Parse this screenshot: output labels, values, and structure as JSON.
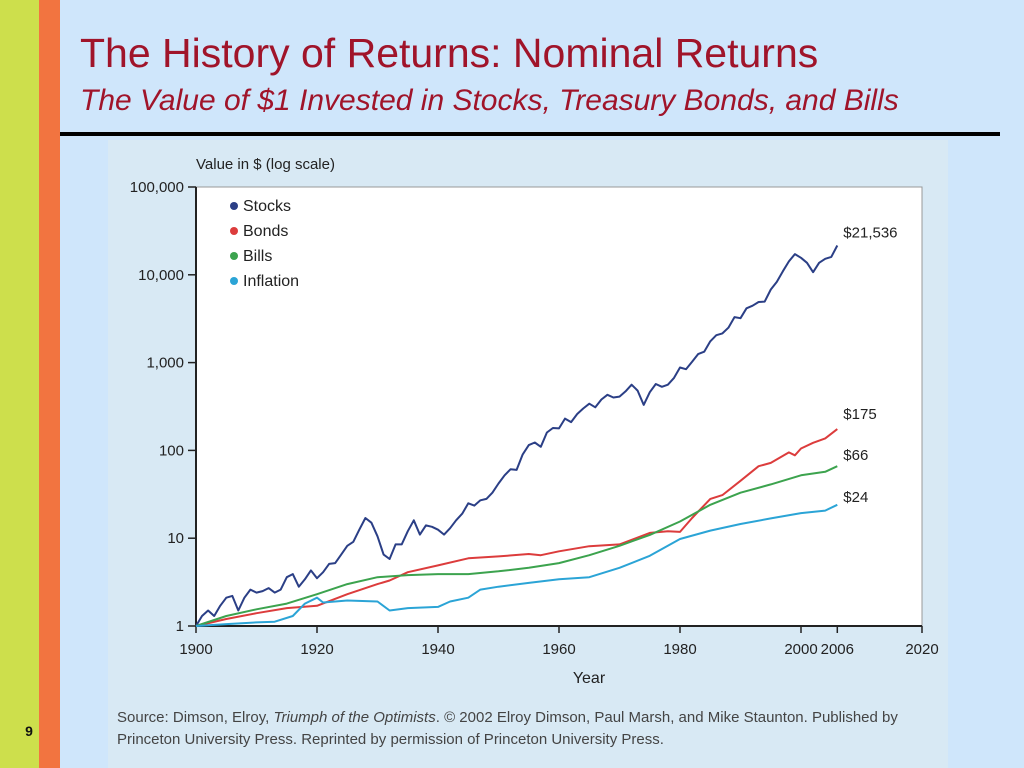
{
  "slide": {
    "number": "9",
    "title": "The History of Returns: Nominal Returns",
    "subtitle": "The Value of $1 Invested in Stocks, Treasury Bonds, and Bills"
  },
  "source": {
    "prefix": "Source: Dimson, Elroy, ",
    "book": "Triumph of the Optimists",
    "rest": ". © 2002 Elroy Dimson, Paul Marsh, and Mike Staunton. Published by Princeton University Press. Reprinted by permission of Princeton University Press."
  },
  "chart_data": {
    "type": "line",
    "ylabel": "Value in $ (log scale)",
    "xlabel": "Year",
    "yscale": "log",
    "ylim": [
      1,
      100000
    ],
    "xlim": [
      1900,
      2020
    ],
    "yticks": [
      {
        "value": 1,
        "label": "1"
      },
      {
        "value": 10,
        "label": "10"
      },
      {
        "value": 100,
        "label": "100"
      },
      {
        "value": 1000,
        "label": "1,000"
      },
      {
        "value": 10000,
        "label": "10,000"
      },
      {
        "value": 100000,
        "label": "100,000"
      }
    ],
    "xticks": [
      {
        "value": 1900,
        "label": "1900"
      },
      {
        "value": 1920,
        "label": "1920"
      },
      {
        "value": 1940,
        "label": "1940"
      },
      {
        "value": 1960,
        "label": "1960"
      },
      {
        "value": 1980,
        "label": "1980"
      },
      {
        "value": 2000,
        "label": "2000"
      },
      {
        "value": 2006,
        "label": "2006"
      },
      {
        "value": 2020,
        "label": "2020"
      }
    ],
    "grid": false,
    "legend": "top-left",
    "series": [
      {
        "name": "Stocks",
        "color": "#2b3f86",
        "end_label": "$21,536",
        "points": [
          [
            1900,
            1
          ],
          [
            1901,
            1.3
          ],
          [
            1902,
            1.5
          ],
          [
            1903,
            1.3
          ],
          [
            1904,
            1.7
          ],
          [
            1905,
            2.1
          ],
          [
            1906,
            2.2
          ],
          [
            1907,
            1.5
          ],
          [
            1908,
            2.1
          ],
          [
            1909,
            2.6
          ],
          [
            1910,
            2.4
          ],
          [
            1911,
            2.5
          ],
          [
            1912,
            2.7
          ],
          [
            1913,
            2.4
          ],
          [
            1914,
            2.6
          ],
          [
            1915,
            3.6
          ],
          [
            1916,
            3.9
          ],
          [
            1917,
            2.8
          ],
          [
            1918,
            3.4
          ],
          [
            1919,
            4.3
          ],
          [
            1920,
            3.5
          ],
          [
            1921,
            4.1
          ],
          [
            1922,
            5.1
          ],
          [
            1923,
            5.2
          ],
          [
            1924,
            6.5
          ],
          [
            1925,
            8.2
          ],
          [
            1926,
            9.1
          ],
          [
            1927,
            12.5
          ],
          [
            1928,
            17
          ],
          [
            1929,
            15
          ],
          [
            1930,
            10.5
          ],
          [
            1931,
            6.5
          ],
          [
            1932,
            5.8
          ],
          [
            1933,
            8.5
          ],
          [
            1934,
            8.5
          ],
          [
            1935,
            12
          ],
          [
            1936,
            16
          ],
          [
            1937,
            11
          ],
          [
            1938,
            14
          ],
          [
            1939,
            13.5
          ],
          [
            1940,
            12.5
          ],
          [
            1941,
            11
          ],
          [
            1942,
            13
          ],
          [
            1943,
            16
          ],
          [
            1944,
            19
          ],
          [
            1945,
            25
          ],
          [
            1946,
            23.5
          ],
          [
            1947,
            27
          ],
          [
            1948,
            28
          ],
          [
            1949,
            33
          ],
          [
            1950,
            42
          ],
          [
            1951,
            52
          ],
          [
            1952,
            61
          ],
          [
            1953,
            60
          ],
          [
            1954,
            90
          ],
          [
            1955,
            115
          ],
          [
            1956,
            123
          ],
          [
            1957,
            110
          ],
          [
            1958,
            160
          ],
          [
            1959,
            180
          ],
          [
            1960,
            178
          ],
          [
            1961,
            230
          ],
          [
            1962,
            210
          ],
          [
            1963,
            260
          ],
          [
            1964,
            300
          ],
          [
            1965,
            340
          ],
          [
            1966,
            310
          ],
          [
            1967,
            380
          ],
          [
            1968,
            430
          ],
          [
            1969,
            400
          ],
          [
            1970,
            410
          ],
          [
            1971,
            470
          ],
          [
            1972,
            560
          ],
          [
            1973,
            480
          ],
          [
            1974,
            330
          ],
          [
            1975,
            460
          ],
          [
            1976,
            570
          ],
          [
            1977,
            530
          ],
          [
            1978,
            560
          ],
          [
            1979,
            670
          ],
          [
            1980,
            880
          ],
          [
            1981,
            840
          ],
          [
            1982,
            1020
          ],
          [
            1983,
            1250
          ],
          [
            1984,
            1330
          ],
          [
            1985,
            1750
          ],
          [
            1986,
            2050
          ],
          [
            1987,
            2150
          ],
          [
            1988,
            2500
          ],
          [
            1989,
            3300
          ],
          [
            1990,
            3200
          ],
          [
            1991,
            4150
          ],
          [
            1992,
            4450
          ],
          [
            1993,
            4900
          ],
          [
            1994,
            4950
          ],
          [
            1995,
            6800
          ],
          [
            1996,
            8300
          ],
          [
            1997,
            11000
          ],
          [
            1998,
            14200
          ],
          [
            1999,
            17200
          ],
          [
            2000,
            15600
          ],
          [
            2001,
            13700
          ],
          [
            2002,
            10700
          ],
          [
            2003,
            13700
          ],
          [
            2004,
            15200
          ],
          [
            2005,
            16000
          ],
          [
            2006,
            21536
          ]
        ]
      },
      {
        "name": "Bonds",
        "color": "#dc3c3c",
        "end_label": "$175",
        "points": [
          [
            1900,
            1
          ],
          [
            1905,
            1.2
          ],
          [
            1910,
            1.4
          ],
          [
            1915,
            1.6
          ],
          [
            1920,
            1.7
          ],
          [
            1925,
            2.3
          ],
          [
            1930,
            3
          ],
          [
            1932,
            3.3
          ],
          [
            1935,
            4.1
          ],
          [
            1940,
            4.9
          ],
          [
            1945,
            5.9
          ],
          [
            1950,
            6.2
          ],
          [
            1955,
            6.6
          ],
          [
            1957,
            6.4
          ],
          [
            1960,
            7.1
          ],
          [
            1965,
            8.1
          ],
          [
            1970,
            8.5
          ],
          [
            1975,
            11.5
          ],
          [
            1978,
            12
          ],
          [
            1980,
            11.8
          ],
          [
            1982,
            17
          ],
          [
            1985,
            28
          ],
          [
            1987,
            31
          ],
          [
            1990,
            45
          ],
          [
            1993,
            66
          ],
          [
            1995,
            72
          ],
          [
            1998,
            95
          ],
          [
            1999,
            88
          ],
          [
            2000,
            105
          ],
          [
            2002,
            122
          ],
          [
            2004,
            137
          ],
          [
            2006,
            175
          ]
        ]
      },
      {
        "name": "Bills",
        "color": "#3ca34e",
        "end_label": "$66",
        "points": [
          [
            1900,
            1
          ],
          [
            1905,
            1.3
          ],
          [
            1910,
            1.55
          ],
          [
            1915,
            1.8
          ],
          [
            1920,
            2.3
          ],
          [
            1925,
            3
          ],
          [
            1930,
            3.6
          ],
          [
            1935,
            3.8
          ],
          [
            1940,
            3.9
          ],
          [
            1945,
            3.9
          ],
          [
            1950,
            4.2
          ],
          [
            1955,
            4.6
          ],
          [
            1960,
            5.2
          ],
          [
            1965,
            6.4
          ],
          [
            1970,
            8.2
          ],
          [
            1975,
            10.9
          ],
          [
            1980,
            15.5
          ],
          [
            1985,
            24
          ],
          [
            1990,
            33
          ],
          [
            1995,
            41
          ],
          [
            2000,
            52
          ],
          [
            2004,
            57
          ],
          [
            2006,
            66
          ]
        ]
      },
      {
        "name": "Inflation",
        "color": "#2ba4d6",
        "end_label": "$24",
        "points": [
          [
            1900,
            1
          ],
          [
            1905,
            1.05
          ],
          [
            1910,
            1.1
          ],
          [
            1913,
            1.12
          ],
          [
            1916,
            1.3
          ],
          [
            1918,
            1.8
          ],
          [
            1920,
            2.1
          ],
          [
            1921,
            1.85
          ],
          [
            1925,
            1.95
          ],
          [
            1930,
            1.9
          ],
          [
            1932,
            1.5
          ],
          [
            1935,
            1.6
          ],
          [
            1940,
            1.65
          ],
          [
            1942,
            1.9
          ],
          [
            1945,
            2.1
          ],
          [
            1947,
            2.6
          ],
          [
            1950,
            2.8
          ],
          [
            1955,
            3.1
          ],
          [
            1960,
            3.4
          ],
          [
            1965,
            3.6
          ],
          [
            1970,
            4.6
          ],
          [
            1975,
            6.3
          ],
          [
            1980,
            9.8
          ],
          [
            1985,
            12.2
          ],
          [
            1990,
            14.5
          ],
          [
            1995,
            16.8
          ],
          [
            2000,
            19.3
          ],
          [
            2004,
            20.6
          ],
          [
            2006,
            24
          ]
        ]
      }
    ]
  }
}
